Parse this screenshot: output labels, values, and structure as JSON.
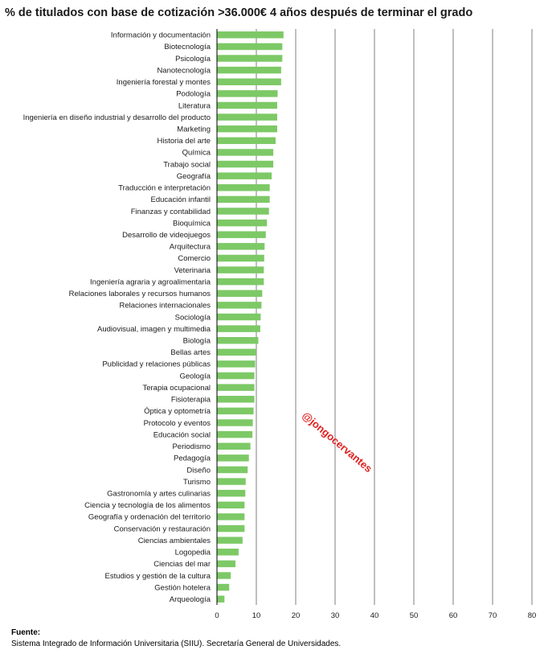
{
  "title": "% de titulados con base de cotización >36.000€  4 años después de terminar el grado",
  "watermark": "@jongocervantes",
  "source": {
    "label": "Fuente:",
    "text": "Sistema Integrado de Información Universitaria (SIIU). Secretaría General de Universidades."
  },
  "colors": {
    "bar": "#7dc966",
    "grid": "#7f7f7f",
    "axis": "#000000"
  },
  "chart_data": {
    "type": "bar",
    "orientation": "horizontal",
    "categories": [
      "Información y documentación",
      "Biotecnología",
      "Psicología",
      "Nanotecnología",
      "Ingeniería forestal y montes",
      "Podología",
      "Literatura",
      "Ingeniería en diseño industrial y desarrollo del producto",
      "Marketing",
      "Historia del arte",
      "Química",
      "Trabajo social",
      "Geografía",
      "Traducción e interpretación",
      "Educación infantil",
      "Finanzas y contabilidad",
      "Bioquímica",
      "Desarrollo de videojuegos",
      "Arquitectura",
      "Comercio",
      "Veterinaria",
      "Ingeniería agraria y agroalimentaria",
      "Relaciones laborales y recursos humanos",
      "Relaciones internacionales",
      "Sociología",
      "Audiovisual, imagen y multimedia",
      "Biología",
      "Bellas artes",
      "Publicidad y relaciones públicas",
      "Geología",
      "Terapia ocupacional",
      "Fisioterapia",
      "Óptica y optometría",
      "Protocolo y eventos",
      "Educación social",
      "Periodismo",
      "Pedagogía",
      "Diseño",
      "Turismo",
      "Gastronomía y artes culinarias",
      "Ciencia y tecnología de los alimentos",
      "Geografía y ordenación del territorio",
      "Conservación y restauración",
      "Ciencias ambientales",
      "Logopedia",
      "Ciencias del mar",
      "Estudios y gestión de la cultura",
      "Gestión hotelera",
      "Arqueología"
    ],
    "values": [
      16.8,
      16.5,
      16.5,
      16.2,
      16.2,
      15.3,
      15.2,
      15.2,
      15.2,
      14.8,
      14.2,
      14.2,
      13.8,
      13.3,
      13.3,
      13.1,
      12.6,
      12.3,
      12.0,
      11.9,
      11.8,
      11.8,
      11.4,
      11.2,
      11.0,
      10.9,
      10.4,
      9.9,
      9.6,
      9.4,
      9.4,
      9.4,
      9.2,
      9.0,
      8.9,
      8.4,
      8.0,
      7.7,
      7.2,
      7.1,
      6.9,
      6.9,
      6.9,
      6.4,
      5.4,
      4.6,
      3.4,
      3.0,
      1.8
    ],
    "xlim": [
      0,
      80
    ],
    "xticks": [
      "0",
      "10",
      "20",
      "30",
      "40",
      "50",
      "60",
      "70",
      "80"
    ],
    "grid": true,
    "legend": "none"
  }
}
